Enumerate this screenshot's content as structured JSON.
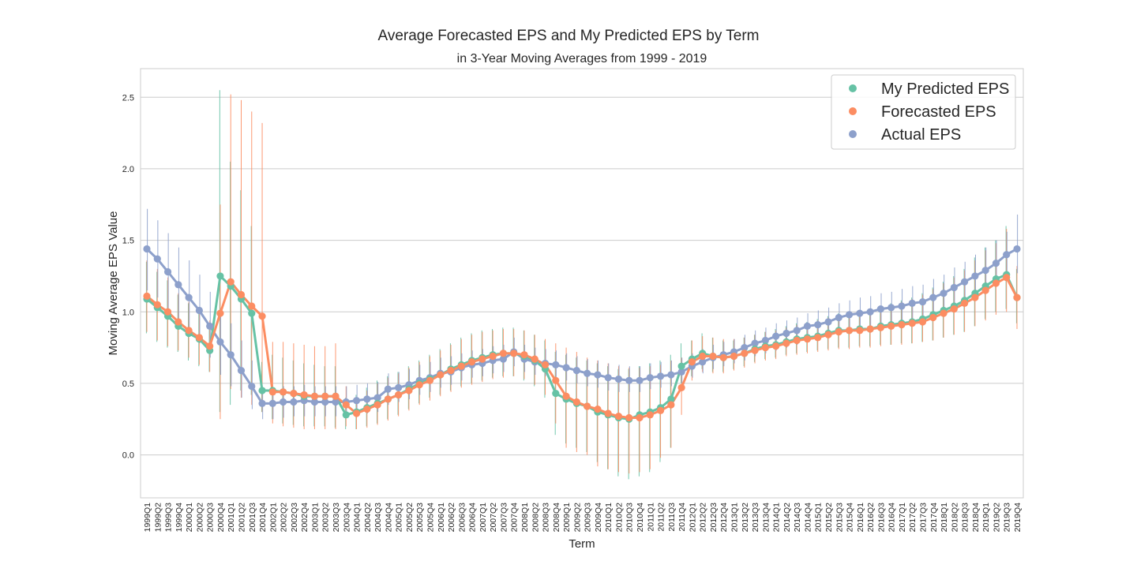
{
  "chart_data": {
    "type": "line",
    "title": "Average Forecasted EPS and My Predicted EPS by Term",
    "subtitle": "in 3-Year Moving Averages from 1999 - 2019",
    "xlabel": "Term",
    "ylabel": "Moving Average EPS Value",
    "ylim": [
      -0.3,
      2.7
    ],
    "yticks": [
      "0.0",
      "0.5",
      "1.0",
      "1.5",
      "2.0",
      "2.5"
    ],
    "grid": "horizontal",
    "legend_position": "top-right",
    "categories": [
      "1999Q1",
      "1999Q2",
      "1999Q3",
      "1999Q4",
      "2000Q1",
      "2000Q2",
      "2000Q3",
      "2000Q4",
      "2001Q1",
      "2001Q2",
      "2001Q3",
      "2001Q4",
      "2002Q1",
      "2002Q2",
      "2002Q3",
      "2002Q4",
      "2003Q1",
      "2003Q2",
      "2003Q3",
      "2003Q4",
      "2004Q1",
      "2004Q2",
      "2004Q3",
      "2004Q4",
      "2005Q1",
      "2005Q2",
      "2005Q3",
      "2005Q4",
      "2006Q1",
      "2006Q2",
      "2006Q3",
      "2006Q4",
      "2007Q1",
      "2007Q2",
      "2007Q3",
      "2007Q4",
      "2008Q1",
      "2008Q2",
      "2008Q3",
      "2008Q4",
      "2009Q1",
      "2009Q2",
      "2009Q3",
      "2009Q4",
      "2010Q1",
      "2010Q2",
      "2010Q3",
      "2010Q4",
      "2011Q1",
      "2011Q2",
      "2011Q3",
      "2011Q4",
      "2012Q1",
      "2012Q2",
      "2012Q3",
      "2012Q4",
      "2013Q1",
      "2013Q2",
      "2013Q3",
      "2013Q4",
      "2014Q1",
      "2014Q2",
      "2014Q3",
      "2014Q4",
      "2015Q1",
      "2015Q2",
      "2015Q3",
      "2015Q4",
      "2016Q1",
      "2016Q2",
      "2016Q3",
      "2016Q4",
      "2017Q1",
      "2017Q2",
      "2017Q3",
      "2017Q4",
      "2018Q1",
      "2018Q2",
      "2018Q3",
      "2018Q4",
      "2019Q1",
      "2019Q2",
      "2019Q3",
      "2019Q4"
    ],
    "series": [
      {
        "name": "My Predicted EPS",
        "color": "#66c2a5",
        "values": [
          1.09,
          1.03,
          0.97,
          0.9,
          0.85,
          0.81,
          0.73,
          1.25,
          1.18,
          1.09,
          0.99,
          0.45,
          0.45,
          0.44,
          0.43,
          0.41,
          0.41,
          0.41,
          0.41,
          0.28,
          0.3,
          0.33,
          0.36,
          0.39,
          0.42,
          0.46,
          0.5,
          0.53,
          0.56,
          0.6,
          0.63,
          0.66,
          0.68,
          0.7,
          0.71,
          0.71,
          0.69,
          0.66,
          0.6,
          0.43,
          0.39,
          0.36,
          0.34,
          0.3,
          0.28,
          0.26,
          0.25,
          0.28,
          0.3,
          0.33,
          0.39,
          0.62,
          0.67,
          0.71,
          0.69,
          0.68,
          0.69,
          0.71,
          0.74,
          0.76,
          0.77,
          0.79,
          0.81,
          0.82,
          0.83,
          0.85,
          0.87,
          0.87,
          0.88,
          0.88,
          0.9,
          0.91,
          0.92,
          0.93,
          0.95,
          0.98,
          1.01,
          1.04,
          1.08,
          1.13,
          1.18,
          1.23,
          1.26,
          1.1
        ],
        "error_low": [
          0.85,
          0.79,
          0.75,
          0.72,
          0.66,
          0.62,
          0.58,
          0.3,
          0.35,
          0.45,
          0.42,
          0.3,
          0.25,
          0.22,
          0.21,
          0.2,
          0.2,
          0.2,
          0.19,
          0.18,
          0.18,
          0.2,
          0.22,
          0.25,
          0.28,
          0.32,
          0.36,
          0.4,
          0.42,
          0.45,
          0.48,
          0.5,
          0.52,
          0.54,
          0.55,
          0.55,
          0.52,
          0.48,
          0.4,
          0.14,
          0.08,
          0.05,
          0.02,
          -0.05,
          -0.1,
          -0.15,
          -0.17,
          -0.15,
          -0.12,
          -0.05,
          0.05,
          0.5,
          0.55,
          0.6,
          0.58,
          0.58,
          0.6,
          0.62,
          0.65,
          0.67,
          0.68,
          0.7,
          0.71,
          0.72,
          0.73,
          0.74,
          0.75,
          0.75,
          0.76,
          0.76,
          0.77,
          0.77,
          0.78,
          0.78,
          0.79,
          0.8,
          0.82,
          0.84,
          0.86,
          0.9,
          0.95,
          1.0,
          1.02,
          0.92
        ],
        "error_high": [
          1.35,
          1.28,
          1.22,
          1.12,
          1.06,
          1.0,
          0.92,
          2.55,
          2.05,
          1.85,
          1.6,
          0.65,
          0.7,
          0.68,
          0.66,
          0.64,
          0.63,
          0.62,
          0.62,
          0.4,
          0.42,
          0.47,
          0.52,
          0.55,
          0.58,
          0.62,
          0.66,
          0.7,
          0.74,
          0.78,
          0.82,
          0.85,
          0.87,
          0.88,
          0.89,
          0.89,
          0.87,
          0.84,
          0.8,
          0.72,
          0.7,
          0.68,
          0.66,
          0.64,
          0.62,
          0.6,
          0.6,
          0.62,
          0.64,
          0.66,
          0.7,
          0.78,
          0.8,
          0.85,
          0.82,
          0.8,
          0.8,
          0.82,
          0.84,
          0.86,
          0.88,
          0.9,
          0.92,
          0.93,
          0.95,
          0.97,
          0.99,
          1.0,
          1.01,
          1.02,
          1.04,
          1.06,
          1.08,
          1.1,
          1.13,
          1.17,
          1.21,
          1.25,
          1.3,
          1.38,
          1.45,
          1.5,
          1.6,
          1.3
        ]
      },
      {
        "name": "Forecasted EPS",
        "color": "#fc8d62",
        "values": [
          1.11,
          1.05,
          1.0,
          0.93,
          0.87,
          0.82,
          0.76,
          0.99,
          1.21,
          1.12,
          1.04,
          0.97,
          0.44,
          0.44,
          0.43,
          0.42,
          0.41,
          0.41,
          0.41,
          0.35,
          0.29,
          0.32,
          0.35,
          0.39,
          0.42,
          0.45,
          0.49,
          0.52,
          0.56,
          0.59,
          0.62,
          0.65,
          0.67,
          0.69,
          0.71,
          0.71,
          0.7,
          0.67,
          0.63,
          0.52,
          0.41,
          0.37,
          0.34,
          0.32,
          0.29,
          0.27,
          0.26,
          0.26,
          0.28,
          0.31,
          0.35,
          0.47,
          0.65,
          0.69,
          0.69,
          0.68,
          0.69,
          0.71,
          0.73,
          0.75,
          0.76,
          0.78,
          0.8,
          0.81,
          0.82,
          0.84,
          0.86,
          0.87,
          0.87,
          0.88,
          0.89,
          0.9,
          0.91,
          0.92,
          0.93,
          0.96,
          0.99,
          1.02,
          1.06,
          1.1,
          1.15,
          1.2,
          1.24,
          1.1
        ],
        "error_low": [
          0.86,
          0.8,
          0.76,
          0.73,
          0.68,
          0.63,
          0.58,
          0.25,
          0.46,
          0.4,
          0.35,
          0.3,
          0.22,
          0.2,
          0.19,
          0.18,
          0.18,
          0.18,
          0.18,
          0.2,
          0.18,
          0.19,
          0.21,
          0.24,
          0.27,
          0.31,
          0.35,
          0.38,
          0.41,
          0.44,
          0.47,
          0.49,
          0.51,
          0.53,
          0.54,
          0.55,
          0.53,
          0.49,
          0.42,
          0.22,
          0.05,
          0.02,
          0.0,
          -0.08,
          -0.1,
          -0.12,
          -0.13,
          -0.12,
          -0.1,
          -0.02,
          0.05,
          0.28,
          0.52,
          0.58,
          0.57,
          0.57,
          0.59,
          0.61,
          0.64,
          0.66,
          0.67,
          0.69,
          0.7,
          0.71,
          0.72,
          0.73,
          0.74,
          0.74,
          0.75,
          0.75,
          0.76,
          0.77,
          0.77,
          0.78,
          0.79,
          0.8,
          0.82,
          0.84,
          0.86,
          0.9,
          0.94,
          0.98,
          1.0,
          0.88
        ],
        "error_high": [
          1.36,
          1.3,
          1.24,
          1.13,
          1.07,
          1.01,
          0.94,
          1.75,
          2.52,
          2.48,
          2.4,
          2.32,
          0.79,
          0.79,
          0.78,
          0.77,
          0.76,
          0.76,
          0.78,
          0.48,
          0.4,
          0.45,
          0.5,
          0.54,
          0.57,
          0.61,
          0.65,
          0.69,
          0.73,
          0.77,
          0.81,
          0.84,
          0.86,
          0.87,
          0.88,
          0.88,
          0.87,
          0.84,
          0.81,
          0.78,
          0.75,
          0.72,
          0.68,
          0.66,
          0.64,
          0.62,
          0.61,
          0.61,
          0.62,
          0.63,
          0.66,
          0.68,
          0.8,
          0.83,
          0.82,
          0.81,
          0.81,
          0.82,
          0.84,
          0.86,
          0.87,
          0.89,
          0.91,
          0.92,
          0.94,
          0.96,
          0.98,
          0.99,
          1.0,
          1.01,
          1.03,
          1.05,
          1.07,
          1.09,
          1.12,
          1.16,
          1.2,
          1.24,
          1.29,
          1.36,
          1.43,
          1.48,
          1.58,
          1.32
        ]
      },
      {
        "name": "Actual EPS",
        "color": "#8da0cb",
        "values": [
          1.44,
          1.37,
          1.28,
          1.19,
          1.1,
          1.01,
          0.9,
          0.79,
          0.7,
          0.59,
          0.48,
          0.36,
          0.36,
          0.37,
          0.37,
          0.38,
          0.37,
          0.37,
          0.37,
          0.37,
          0.38,
          0.39,
          0.4,
          0.46,
          0.47,
          0.49,
          0.52,
          0.54,
          0.57,
          0.58,
          0.61,
          0.63,
          0.64,
          0.66,
          0.67,
          0.72,
          0.67,
          0.65,
          0.64,
          0.63,
          0.61,
          0.59,
          0.57,
          0.56,
          0.54,
          0.53,
          0.52,
          0.52,
          0.54,
          0.55,
          0.56,
          0.58,
          0.62,
          0.65,
          0.68,
          0.7,
          0.72,
          0.75,
          0.78,
          0.8,
          0.83,
          0.85,
          0.87,
          0.9,
          0.91,
          0.93,
          0.96,
          0.98,
          0.99,
          1.0,
          1.02,
          1.03,
          1.04,
          1.06,
          1.07,
          1.1,
          1.13,
          1.17,
          1.21,
          1.25,
          1.29,
          1.34,
          1.4,
          1.44
        ],
        "error_low": [
          1.15,
          1.1,
          1.02,
          0.95,
          0.86,
          0.78,
          0.68,
          0.56,
          0.48,
          0.4,
          0.32,
          0.25,
          0.25,
          0.26,
          0.27,
          0.27,
          0.27,
          0.27,
          0.27,
          0.27,
          0.28,
          0.29,
          0.3,
          0.35,
          0.37,
          0.39,
          0.42,
          0.44,
          0.47,
          0.49,
          0.52,
          0.54,
          0.55,
          0.57,
          0.58,
          0.62,
          0.58,
          0.56,
          0.55,
          0.54,
          0.52,
          0.5,
          0.48,
          0.47,
          0.45,
          0.44,
          0.44,
          0.44,
          0.46,
          0.47,
          0.48,
          0.5,
          0.54,
          0.57,
          0.6,
          0.62,
          0.64,
          0.66,
          0.69,
          0.71,
          0.73,
          0.75,
          0.77,
          0.79,
          0.81,
          0.83,
          0.85,
          0.87,
          0.88,
          0.89,
          0.9,
          0.91,
          0.92,
          0.94,
          0.95,
          0.97,
          1.0,
          1.03,
          1.07,
          1.1,
          1.14,
          1.18,
          1.23,
          1.27
        ],
        "error_high": [
          1.72,
          1.64,
          1.55,
          1.45,
          1.36,
          1.26,
          1.14,
          1.02,
          0.92,
          0.8,
          0.66,
          0.47,
          0.47,
          0.48,
          0.48,
          0.49,
          0.48,
          0.48,
          0.48,
          0.48,
          0.49,
          0.5,
          0.51,
          0.57,
          0.58,
          0.6,
          0.63,
          0.65,
          0.68,
          0.69,
          0.71,
          0.73,
          0.74,
          0.76,
          0.77,
          0.82,
          0.77,
          0.75,
          0.74,
          0.73,
          0.71,
          0.69,
          0.67,
          0.66,
          0.64,
          0.63,
          0.62,
          0.62,
          0.64,
          0.65,
          0.66,
          0.68,
          0.71,
          0.74,
          0.77,
          0.79,
          0.81,
          0.84,
          0.87,
          0.89,
          0.92,
          0.94,
          0.96,
          0.99,
          1.01,
          1.03,
          1.06,
          1.08,
          1.1,
          1.11,
          1.13,
          1.14,
          1.16,
          1.18,
          1.19,
          1.23,
          1.26,
          1.31,
          1.35,
          1.4,
          1.45,
          1.5,
          1.56,
          1.68
        ]
      }
    ]
  }
}
